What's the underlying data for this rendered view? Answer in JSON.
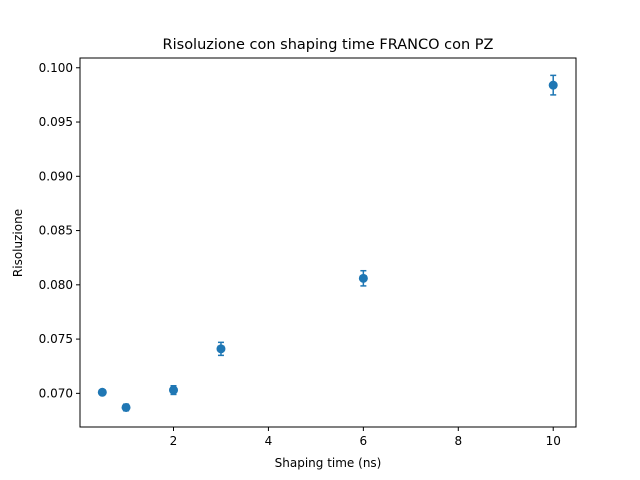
{
  "chart_data": {
    "type": "scatter",
    "title": "Risoluzione con shaping time FRANCO con PZ",
    "xlabel": "Shaping time (ns)",
    "ylabel": "Risoluzione",
    "xlim": [
      0.03,
      10.48
    ],
    "ylim": [
      0.0669,
      0.1009
    ],
    "xticks": [
      2,
      4,
      6,
      8,
      10
    ],
    "xtick_labels": [
      "2",
      "4",
      "6",
      "8",
      "10"
    ],
    "yticks": [
      0.07,
      0.075,
      0.08,
      0.085,
      0.09,
      0.095,
      0.1
    ],
    "ytick_labels": [
      "0.070",
      "0.075",
      "0.080",
      "0.085",
      "0.090",
      "0.095",
      "0.100"
    ],
    "grid": false,
    "error_bars": true,
    "color": "#1f77b4",
    "points": [
      {
        "x": 0.5,
        "y": 0.0701,
        "err": 0.0002
      },
      {
        "x": 1.0,
        "y": 0.0687,
        "err": 0.0003
      },
      {
        "x": 2.0,
        "y": 0.0703,
        "err": 0.0004
      },
      {
        "x": 3.0,
        "y": 0.0741,
        "err": 0.0006
      },
      {
        "x": 6.0,
        "y": 0.0806,
        "err": 0.0007
      },
      {
        "x": 10.0,
        "y": 0.0984,
        "err": 0.0009
      }
    ]
  }
}
